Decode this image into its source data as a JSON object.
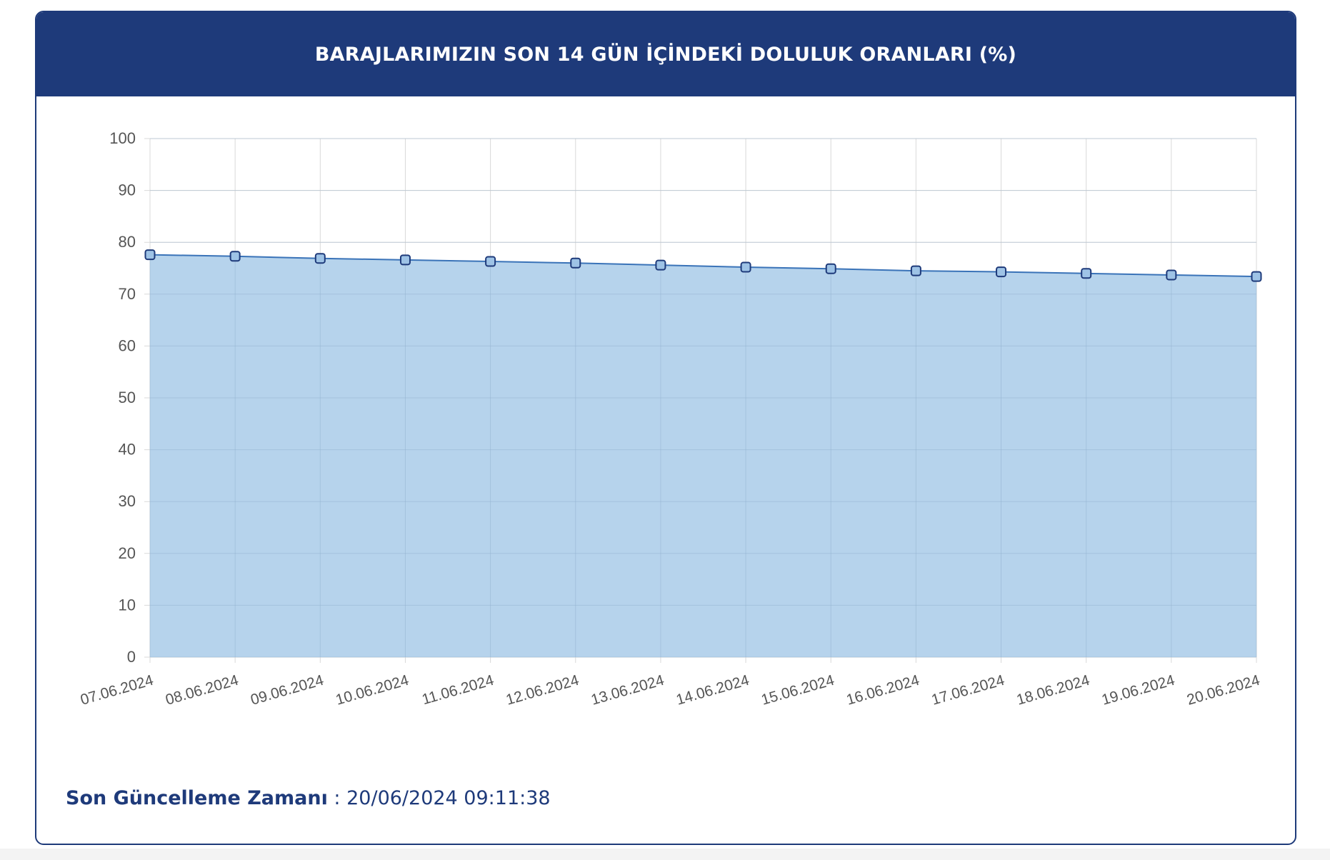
{
  "header": {
    "title": "BARAJLARIMIZIN SON 14 GÜN İÇİNDEKİ DOLULUK ORANLARI (%)"
  },
  "footer": {
    "label": "Son Güncelleme Zamanı",
    "separator": " : ",
    "value": "20/06/2024 09:11:38"
  },
  "colors": {
    "header_bg": "#1e3a7a",
    "area_fill": "#b0cfea",
    "line": "#3a73b8",
    "point_fill": "#9ec3e6",
    "point_stroke": "#1e3a7a",
    "grid": "#d9d9d9",
    "tick_text": "#555555"
  },
  "chart_data": {
    "type": "area",
    "x": [
      "07.06.2024",
      "08.06.2024",
      "09.06.2024",
      "10.06.2024",
      "11.06.2024",
      "12.06.2024",
      "13.06.2024",
      "14.06.2024",
      "15.06.2024",
      "16.06.2024",
      "17.06.2024",
      "18.06.2024",
      "19.06.2024",
      "20.06.2024"
    ],
    "series": [
      {
        "values": [
          77.6,
          77.3,
          76.9,
          76.6,
          76.3,
          76.0,
          75.6,
          75.2,
          74.9,
          74.5,
          74.3,
          74.0,
          73.7,
          73.4
        ]
      }
    ],
    "ylim": [
      0,
      100
    ],
    "yticks": [
      0,
      10,
      20,
      30,
      40,
      50,
      60,
      70,
      80,
      90,
      100
    ],
    "grid": true,
    "legend": "none",
    "xlabel": "",
    "ylabel": ""
  }
}
